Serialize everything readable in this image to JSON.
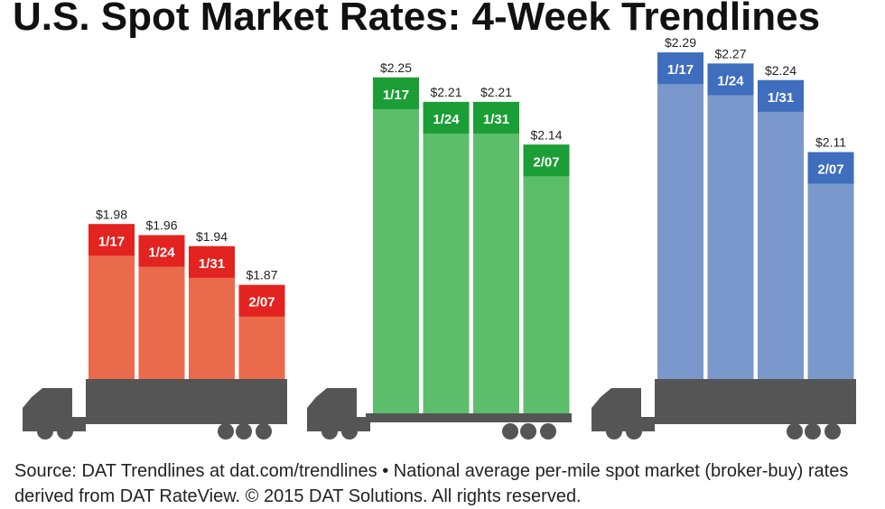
{
  "title": "U.S. Spot Market Rates: 4-Week Trendlines",
  "source": "Source: DAT Trendlines at dat.com/trendlines • National average per-mile spot market (broker-buy) rates derived from DAT RateView. © 2015 DAT Solutions. All rights reserved.",
  "chart_data": [
    {
      "type": "bar",
      "categories": [
        "1/17",
        "1/24",
        "1/31",
        "2/07"
      ],
      "values": [
        1.98,
        1.96,
        1.94,
        1.87
      ],
      "value_labels": [
        "$1.98",
        "$1.96",
        "$1.94",
        "$1.87"
      ],
      "color": "#ea6a4c",
      "label_color": "#e3231f",
      "ylim": [
        1.7,
        2.3
      ]
    },
    {
      "type": "bar",
      "categories": [
        "1/17",
        "1/24",
        "1/31",
        "2/07"
      ],
      "values": [
        2.25,
        2.21,
        2.21,
        2.14
      ],
      "value_labels": [
        "$2.25",
        "$2.21",
        "$2.21",
        "$2.14"
      ],
      "color": "#5cbd6b",
      "label_color": "#1a9e35",
      "ylim": [
        1.7,
        2.3
      ]
    },
    {
      "type": "bar",
      "categories": [
        "1/17",
        "1/24",
        "1/31",
        "2/07"
      ],
      "values": [
        2.29,
        2.27,
        2.24,
        2.11
      ],
      "value_labels": [
        "$2.29",
        "$2.27",
        "$2.24",
        "$2.11"
      ],
      "color": "#7b98cc",
      "label_color": "#3e6ebd",
      "ylim": [
        1.7,
        2.3
      ]
    }
  ]
}
